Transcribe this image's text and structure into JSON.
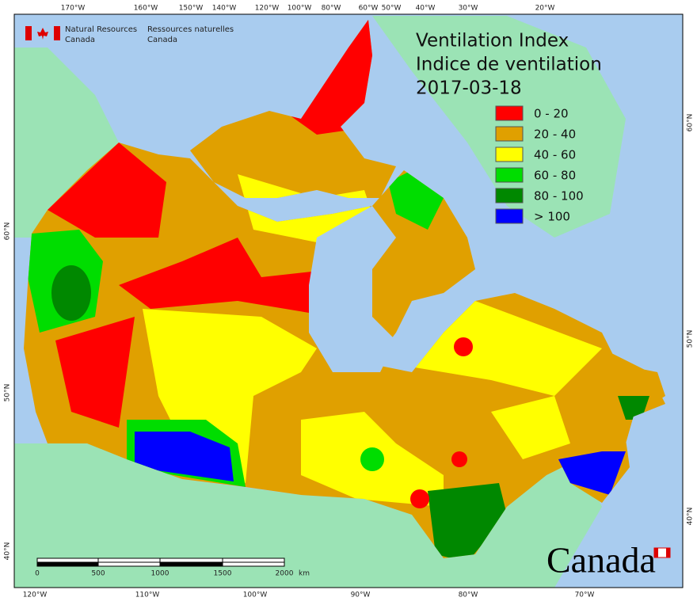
{
  "header": {
    "agency_en": [
      "Natural Resources",
      "Canada"
    ],
    "agency_fr": [
      "Ressources naturelles",
      "Canada"
    ],
    "title": [
      "Ventilation Index",
      "Indice de ventilation",
      "2017-03-18"
    ]
  },
  "legend": [
    {
      "label": "0 - 20",
      "color": "#ff0000"
    },
    {
      "label": "20 - 40",
      "color": "#e0a000"
    },
    {
      "label": "40 - 60",
      "color": "#ffff00"
    },
    {
      "label": "60 - 80",
      "color": "#00dd00"
    },
    {
      "label": "80 - 100",
      "color": "#008800"
    },
    {
      "label": "> 100",
      "color": "#0000ff"
    }
  ],
  "graticule": {
    "top": [
      "170°W",
      "160°W",
      "150°W",
      "140°W",
      "120°W",
      "100°W",
      "80°W",
      "60°W",
      "50°W",
      "40°W",
      "30°W",
      "20°W"
    ],
    "bottom": [
      "120°W",
      "110°W",
      "100°W",
      "90°W",
      "80°W",
      "70°W"
    ],
    "left": [
      "60°N",
      "50°N",
      "40°N"
    ],
    "right": [
      "60°N",
      "50°N",
      "40°N"
    ]
  },
  "scale_bar": [
    "0",
    "500",
    "1000",
    "1500",
    "2000",
    "km"
  ],
  "wordmark": "Canada"
}
